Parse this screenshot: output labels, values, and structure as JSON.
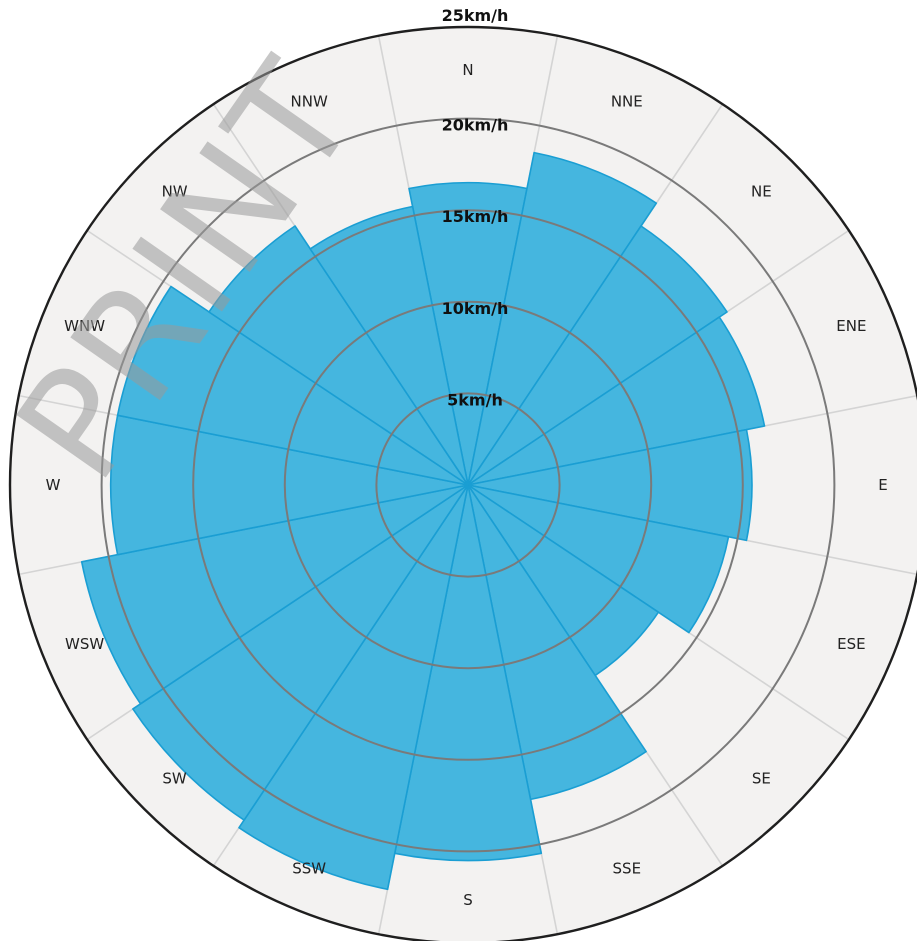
{
  "watermark": "PRINT",
  "chart_data": {
    "type": "polar-bar",
    "title": "",
    "unit": "km/h",
    "rmax": 25,
    "rings": [
      {
        "value": 5,
        "label": "5km/h"
      },
      {
        "value": 10,
        "label": "10km/h"
      },
      {
        "value": 15,
        "label": "15km/h"
      },
      {
        "value": 20,
        "label": "20km/h"
      },
      {
        "value": 25,
        "label": "25km/h"
      }
    ],
    "categories": [
      "N",
      "NNE",
      "NE",
      "ENE",
      "E",
      "ESE",
      "SE",
      "SSE",
      "S",
      "SSW",
      "SW",
      "WSW",
      "W",
      "WNW",
      "NW",
      "NNW"
    ],
    "values": [
      16.5,
      18.5,
      17.0,
      16.5,
      15.5,
      14.5,
      12.5,
      17.5,
      20.5,
      22.5,
      22.0,
      21.5,
      19.5,
      19.5,
      17.0,
      15.5
    ],
    "colors": {
      "bar": "#45b6df",
      "bar_stroke": "#1a9ed3",
      "outer_band": "#f3f2f1",
      "ring": "#7a7a7a",
      "spoke": "#d4d4d4",
      "outer_edge": "#1f1f1f"
    }
  }
}
